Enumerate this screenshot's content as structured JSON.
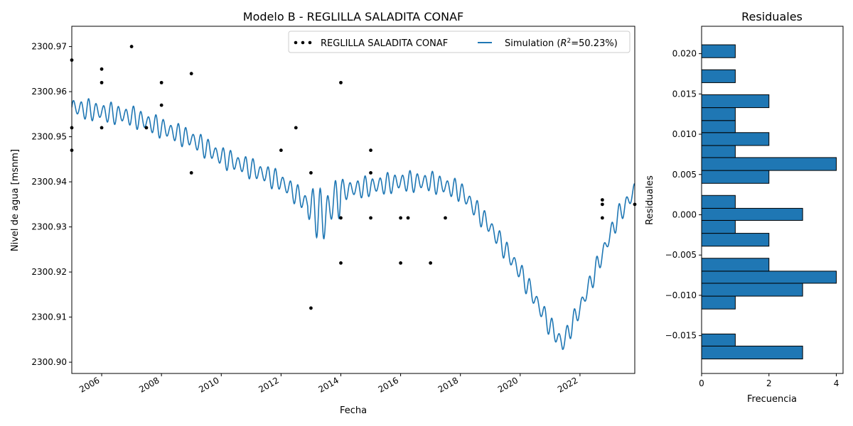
{
  "chart_data": [
    {
      "type": "line",
      "title": "Modelo B - REGLILLA SALADITA CONAF",
      "xlabel": "Fecha",
      "ylabel": "Nivel de agua [msnm]",
      "xlim": [
        "2005-01-01",
        "2023-11-01"
      ],
      "ylim": [
        2300.8975,
        2300.9745
      ],
      "x_ticks": [
        "2006",
        "2008",
        "2010",
        "2012",
        "2014",
        "2016",
        "2018",
        "2020",
        "2022"
      ],
      "y_ticks": [
        "2300.90",
        "2300.91",
        "2300.92",
        "2300.93",
        "2300.94",
        "2300.95",
        "2300.96",
        "2300.97"
      ],
      "legend": {
        "placement": "top-right",
        "observed_label": "REGLILLA SALADITA CONAF",
        "simulation_label_prefix": "Simulation (",
        "simulation_label_r": "R",
        "simulation_label_sup": "2",
        "simulation_label_suffix": "=50.23%)"
      },
      "series": [
        {
          "name": "REGLILLA SALADITA CONAF",
          "kind": "scatter",
          "color": "#000000",
          "points": [
            [
              "2005-01-01",
              2300.967
            ],
            [
              "2005-01-01",
              2300.952
            ],
            [
              "2005-01-01",
              2300.947
            ],
            [
              "2006-01-01",
              2300.965
            ],
            [
              "2006-01-01",
              2300.962
            ],
            [
              "2006-01-01",
              2300.952
            ],
            [
              "2007-01-01",
              2300.97
            ],
            [
              "2007-07-01",
              2300.952
            ],
            [
              "2008-01-01",
              2300.962
            ],
            [
              "2008-01-01",
              2300.957
            ],
            [
              "2009-01-01",
              2300.964
            ],
            [
              "2009-01-01",
              2300.942
            ],
            [
              "2012-01-01",
              2300.947
            ],
            [
              "2012-07-01",
              2300.952
            ],
            [
              "2013-01-01",
              2300.942
            ],
            [
              "2013-01-01",
              2300.912
            ],
            [
              "2014-01-01",
              2300.962
            ],
            [
              "2014-01-01",
              2300.932
            ],
            [
              "2014-01-01",
              2300.922
            ],
            [
              "2015-01-01",
              2300.947
            ],
            [
              "2015-01-01",
              2300.942
            ],
            [
              "2015-01-01",
              2300.932
            ],
            [
              "2016-01-01",
              2300.932
            ],
            [
              "2016-01-01",
              2300.922
            ],
            [
              "2016-04-01",
              2300.932
            ],
            [
              "2017-01-01",
              2300.922
            ],
            [
              "2017-07-01",
              2300.932
            ],
            [
              "2022-10-01",
              2300.936
            ],
            [
              "2022-10-01",
              2300.935
            ],
            [
              "2022-10-01",
              2300.932
            ],
            [
              "2023-11-01",
              2300.935
            ]
          ]
        },
        {
          "name": "Simulation",
          "kind": "line",
          "color": "#1f77b4",
          "trend": [
            [
              "2005-01-01",
              2300.9565
            ],
            [
              "2006-01-01",
              2300.9555
            ],
            [
              "2007-01-01",
              2300.9545
            ],
            [
              "2008-01-01",
              2300.952
            ],
            [
              "2009-01-01",
              2300.9495
            ],
            [
              "2010-01-01",
              2300.9455
            ],
            [
              "2011-01-01",
              2300.943
            ],
            [
              "2012-01-01",
              2300.94
            ],
            [
              "2013-01-01",
              2300.9345
            ],
            [
              "2013-06-01",
              2300.932
            ],
            [
              "2014-01-01",
              2300.938
            ],
            [
              "2015-01-01",
              2300.939
            ],
            [
              "2016-01-01",
              2300.94
            ],
            [
              "2017-01-01",
              2300.94
            ],
            [
              "2018-01-01",
              2300.938
            ],
            [
              "2019-01-01",
              2300.93
            ],
            [
              "2020-01-01",
              2300.92
            ],
            [
              "2020-07-01",
              2300.914
            ],
            [
              "2021-01-01",
              2300.908
            ],
            [
              "2021-06-01",
              2300.904
            ],
            [
              "2022-01-01",
              2300.912
            ],
            [
              "2022-10-01",
              2300.924
            ],
            [
              "2023-04-01",
              2300.932
            ],
            [
              "2023-11-01",
              2300.938
            ]
          ],
          "seasonal_amplitude": 0.0025
        }
      ]
    },
    {
      "type": "bar",
      "orientation": "horizontal",
      "title": "Residuales",
      "xlabel": "Frecuencia",
      "ylabel": "Residuales",
      "xlim": [
        0,
        4.2
      ],
      "ylim": [
        -0.0197,
        0.0234
      ],
      "x_ticks": [
        "0",
        "2",
        "4"
      ],
      "y_ticks": [
        "−0.015",
        "−0.010",
        "−0.005",
        "0.000",
        "0.005",
        "0.010",
        "0.015",
        "0.020"
      ],
      "y_tick_values": [
        -0.015,
        -0.01,
        -0.005,
        0.0,
        0.005,
        0.01,
        0.015,
        0.02
      ],
      "bar_color": "#1f77b4",
      "bins": [
        {
          "lo": -0.0179,
          "hi": -0.0163,
          "count": 3
        },
        {
          "lo": -0.0163,
          "hi": -0.0148,
          "count": 1
        },
        {
          "lo": -0.0117,
          "hi": -0.0101,
          "count": 1
        },
        {
          "lo": -0.0101,
          "hi": -0.0085,
          "count": 3
        },
        {
          "lo": -0.0085,
          "hi": -0.007,
          "count": 4
        },
        {
          "lo": -0.007,
          "hi": -0.0054,
          "count": 2
        },
        {
          "lo": -0.0039,
          "hi": -0.0023,
          "count": 2
        },
        {
          "lo": -0.0023,
          "hi": -0.0007,
          "count": 1
        },
        {
          "lo": -0.0007,
          "hi": 0.0008,
          "count": 3
        },
        {
          "lo": 0.0008,
          "hi": 0.0024,
          "count": 1
        },
        {
          "lo": 0.0039,
          "hi": 0.0055,
          "count": 2
        },
        {
          "lo": 0.0055,
          "hi": 0.0071,
          "count": 4
        },
        {
          "lo": 0.0071,
          "hi": 0.0086,
          "count": 1
        },
        {
          "lo": 0.0086,
          "hi": 0.0102,
          "count": 2
        },
        {
          "lo": 0.0102,
          "hi": 0.0117,
          "count": 1
        },
        {
          "lo": 0.0117,
          "hi": 0.0133,
          "count": 1
        },
        {
          "lo": 0.0133,
          "hi": 0.0149,
          "count": 2
        },
        {
          "lo": 0.0164,
          "hi": 0.018,
          "count": 1
        },
        {
          "lo": 0.0195,
          "hi": 0.0211,
          "count": 1
        }
      ]
    }
  ]
}
